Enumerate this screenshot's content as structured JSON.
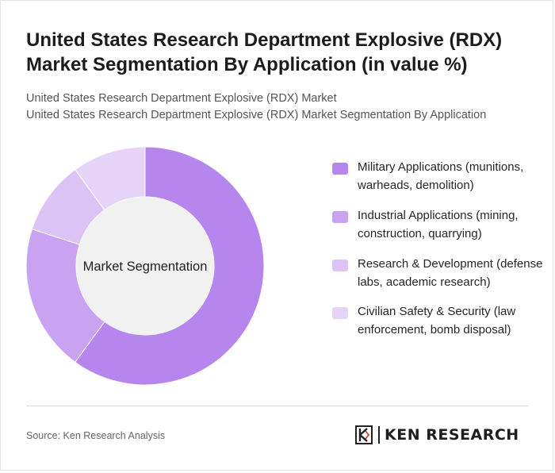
{
  "title": "United States Research Department Explosive (RDX) Market Segmentation By Application (in value %)",
  "subtitle_lines": [
    "United States Research Department Explosive (RDX) Market",
    "United States Research Department Explosive (RDX) Market Segmentation By Application"
  ],
  "chart_data": {
    "type": "pie",
    "variant": "donut",
    "center_label": "Market Segmentation",
    "legend_position": "right",
    "categories": [
      "Military Applications (munitions, warheads, demolition)",
      "Industrial Applications (mining, construction, quarrying)",
      "Research & Development (defense labs, academic research)",
      "Civilian Safety & Security (law enforcement, bomb disposal)"
    ],
    "values": [
      60,
      20,
      10,
      10
    ],
    "colors": [
      "#b685ee",
      "#c9a3f1",
      "#dcc3f6",
      "#e6d3f8"
    ]
  },
  "source": "Source: Ken Research Analysis",
  "logo": {
    "text": "KEN RESEARCH"
  }
}
